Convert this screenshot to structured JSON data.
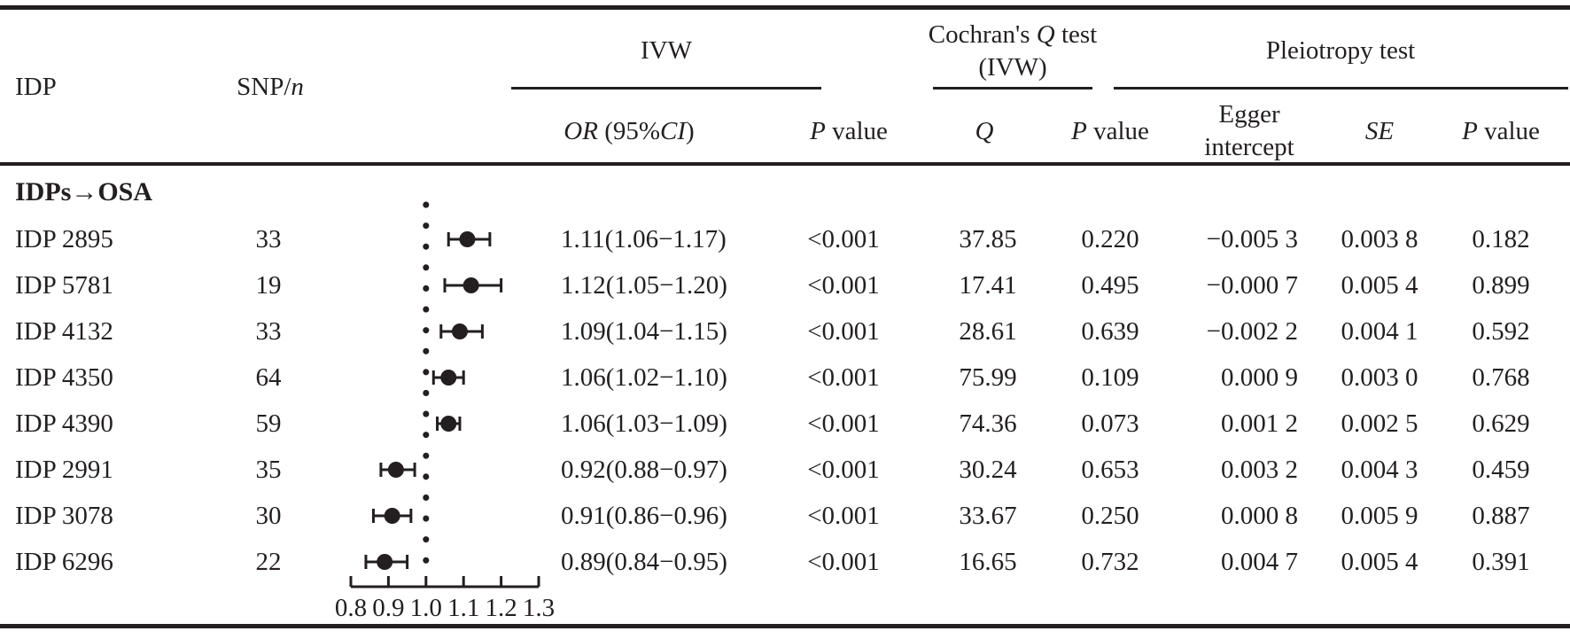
{
  "colors": {
    "text": "#231f20",
    "line": "#231f20",
    "background": "#ffffff",
    "marker": "#231f20"
  },
  "header": {
    "col_idp": "IDP",
    "col_snp_prefix": "SNP/",
    "col_snp_italic": "n",
    "group_ivw": "IVW",
    "group_cochran_pre": "Cochran's ",
    "group_cochran_q": "Q",
    "group_cochran_post": " test",
    "group_cochran_line2": "(IVW)",
    "group_pleiotropy": "Pleiotropy test",
    "sub_or_italic": "OR",
    "sub_or_mid": " (95%",
    "sub_or_ci": "CI",
    "sub_or_end": ")",
    "sub_p_italic": "P",
    "sub_p_rest": " value",
    "sub_q_italic": "Q",
    "sub_egger_line1": "Egger",
    "sub_egger_line2": "intercept",
    "sub_se_italic": "SE"
  },
  "section_label": "IDPs→OSA",
  "rows": [
    {
      "idp": "IDP 2895",
      "snp": "33",
      "or_ci": "1.11(1.06−1.17)",
      "p_ivw": "<0.001",
      "q": "37.85",
      "p_q": "0.220",
      "egger": "−0.005 3",
      "se": "0.003 8",
      "p_pleio": "0.182"
    },
    {
      "idp": "IDP 5781",
      "snp": "19",
      "or_ci": "1.12(1.05−1.20)",
      "p_ivw": "<0.001",
      "q": "17.41",
      "p_q": "0.495",
      "egger": "−0.000 7",
      "se": "0.005 4",
      "p_pleio": "0.899"
    },
    {
      "idp": "IDP 4132",
      "snp": "33",
      "or_ci": "1.09(1.04−1.15)",
      "p_ivw": "<0.001",
      "q": "28.61",
      "p_q": "0.639",
      "egger": "−0.002 2",
      "se": "0.004 1",
      "p_pleio": "0.592"
    },
    {
      "idp": "IDP 4350",
      "snp": "64",
      "or_ci": "1.06(1.02−1.10)",
      "p_ivw": "<0.001",
      "q": "75.99",
      "p_q": "0.109",
      "egger": "0.000 9",
      "se": "0.003 0",
      "p_pleio": "0.768"
    },
    {
      "idp": "IDP 4390",
      "snp": "59",
      "or_ci": "1.06(1.03−1.09)",
      "p_ivw": "<0.001",
      "q": "74.36",
      "p_q": "0.073",
      "egger": "0.001 2",
      "se": "0.002 5",
      "p_pleio": "0.629"
    },
    {
      "idp": "IDP 2991",
      "snp": "35",
      "or_ci": "0.92(0.88−0.97)",
      "p_ivw": "<0.001",
      "q": "30.24",
      "p_q": "0.653",
      "egger": "0.003 2",
      "se": "0.004 3",
      "p_pleio": "0.459"
    },
    {
      "idp": "IDP 3078",
      "snp": "30",
      "or_ci": "0.91(0.86−0.96)",
      "p_ivw": "<0.001",
      "q": "33.67",
      "p_q": "0.250",
      "egger": "0.000 8",
      "se": "0.005 9",
      "p_pleio": "0.887"
    },
    {
      "idp": "IDP 6296",
      "snp": "22",
      "or_ci": "0.89(0.84−0.95)",
      "p_ivw": "<0.001",
      "q": "16.65",
      "p_q": "0.732",
      "egger": "0.004 7",
      "se": "0.005 4",
      "p_pleio": "0.391"
    }
  ],
  "chart_data": {
    "type": "forest",
    "title": "",
    "xlabel": "",
    "xlim": [
      0.8,
      1.3
    ],
    "reference_line": 1.0,
    "tick_values": [
      0.8,
      0.9,
      1.0,
      1.1,
      1.2,
      1.3
    ],
    "tick_labels": [
      "0.8",
      "0.9",
      "1.0",
      "1.1",
      "1.2",
      "1.3"
    ],
    "points": [
      {
        "label": "IDP 2895",
        "or": 1.11,
        "ci_low": 1.06,
        "ci_high": 1.17
      },
      {
        "label": "IDP 5781",
        "or": 1.12,
        "ci_low": 1.05,
        "ci_high": 1.2
      },
      {
        "label": "IDP 4132",
        "or": 1.09,
        "ci_low": 1.04,
        "ci_high": 1.15
      },
      {
        "label": "IDP 4350",
        "or": 1.06,
        "ci_low": 1.02,
        "ci_high": 1.1
      },
      {
        "label": "IDP 4390",
        "or": 1.06,
        "ci_low": 1.03,
        "ci_high": 1.09
      },
      {
        "label": "IDP 2991",
        "or": 0.92,
        "ci_low": 0.88,
        "ci_high": 0.97
      },
      {
        "label": "IDP 3078",
        "or": 0.91,
        "ci_low": 0.86,
        "ci_high": 0.96
      },
      {
        "label": "IDP 6296",
        "or": 0.89,
        "ci_low": 0.84,
        "ci_high": 0.95
      }
    ]
  }
}
